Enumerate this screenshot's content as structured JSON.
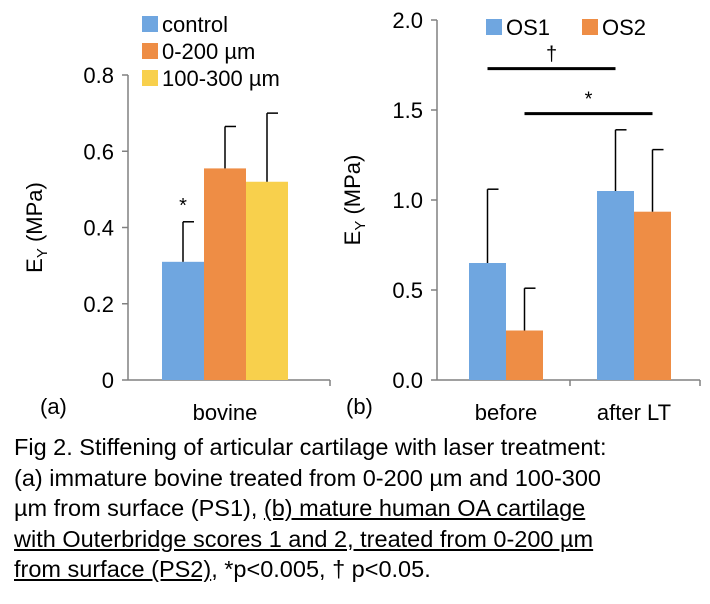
{
  "colors": {
    "blue": "#6FA6E0",
    "orange": "#EE8D45",
    "yellow": "#F8D04C",
    "axis": "#808080"
  },
  "chart_data": [
    {
      "type": "bar",
      "panel_label": "(a)",
      "categories": [
        "bovine"
      ],
      "ylabel_main": "E",
      "ylabel_sub": "Y",
      "ylabel_rest": " (MPa)",
      "ylim": [
        0,
        0.8
      ],
      "yticks": [
        "0",
        "0.2",
        "0.4",
        "0.6",
        "0.8"
      ],
      "legend_position": "top-left",
      "series": [
        {
          "name": "control",
          "color": "#6FA6E0",
          "values": [
            0.31
          ],
          "errors": [
            0.105
          ]
        },
        {
          "name": "0-200 µm",
          "color": "#EE8D45",
          "values": [
            0.555
          ],
          "errors": [
            0.11
          ]
        },
        {
          "name": "100-300 µm",
          "color": "#F8D04C",
          "values": [
            0.52
          ],
          "errors": [
            0.18
          ]
        }
      ],
      "annotations": [
        {
          "text": "*",
          "series": 0,
          "category": 0
        }
      ]
    },
    {
      "type": "bar",
      "panel_label": "(b)",
      "categories": [
        "before",
        "after LT"
      ],
      "ylabel_main": "E",
      "ylabel_sub": "Y",
      "ylabel_rest": " (MPa)",
      "ylim": [
        0,
        2.0
      ],
      "yticks": [
        "0.0",
        "0.5",
        "1.0",
        "1.5",
        "2.0"
      ],
      "legend_position": "top",
      "series": [
        {
          "name": "OS1",
          "color": "#6FA6E0",
          "values": [
            0.65,
            1.05
          ],
          "errors": [
            0.41,
            0.34
          ]
        },
        {
          "name": "OS2",
          "color": "#EE8D45",
          "values": [
            0.275,
            0.935
          ],
          "errors": [
            0.235,
            0.345
          ]
        }
      ],
      "significance": [
        {
          "text": "†",
          "from": {
            "series": 0,
            "category": 0
          },
          "to": {
            "series": 0,
            "category": 1
          },
          "y": 1.73
        },
        {
          "text": "*",
          "from": {
            "series": 1,
            "category": 0
          },
          "to": {
            "series": 1,
            "category": 1
          },
          "y": 1.48
        }
      ]
    }
  ],
  "caption": {
    "line1": "Fig 2. Stiffening of articular cartilage with laser treatment:",
    "line2": "(a) immature bovine treated from 0-200 µm and 100-300",
    "line3_plain": "µm from surface (PS1), ",
    "line3_ul": "(b) mature human OA cartilage",
    "line4_ul": "with Outerbridge scores 1 and 2, treated from 0-200 µm",
    "line5_ul": "from surface (PS2)",
    "line5_plain": ", *p<0.005, † p<0.05."
  }
}
